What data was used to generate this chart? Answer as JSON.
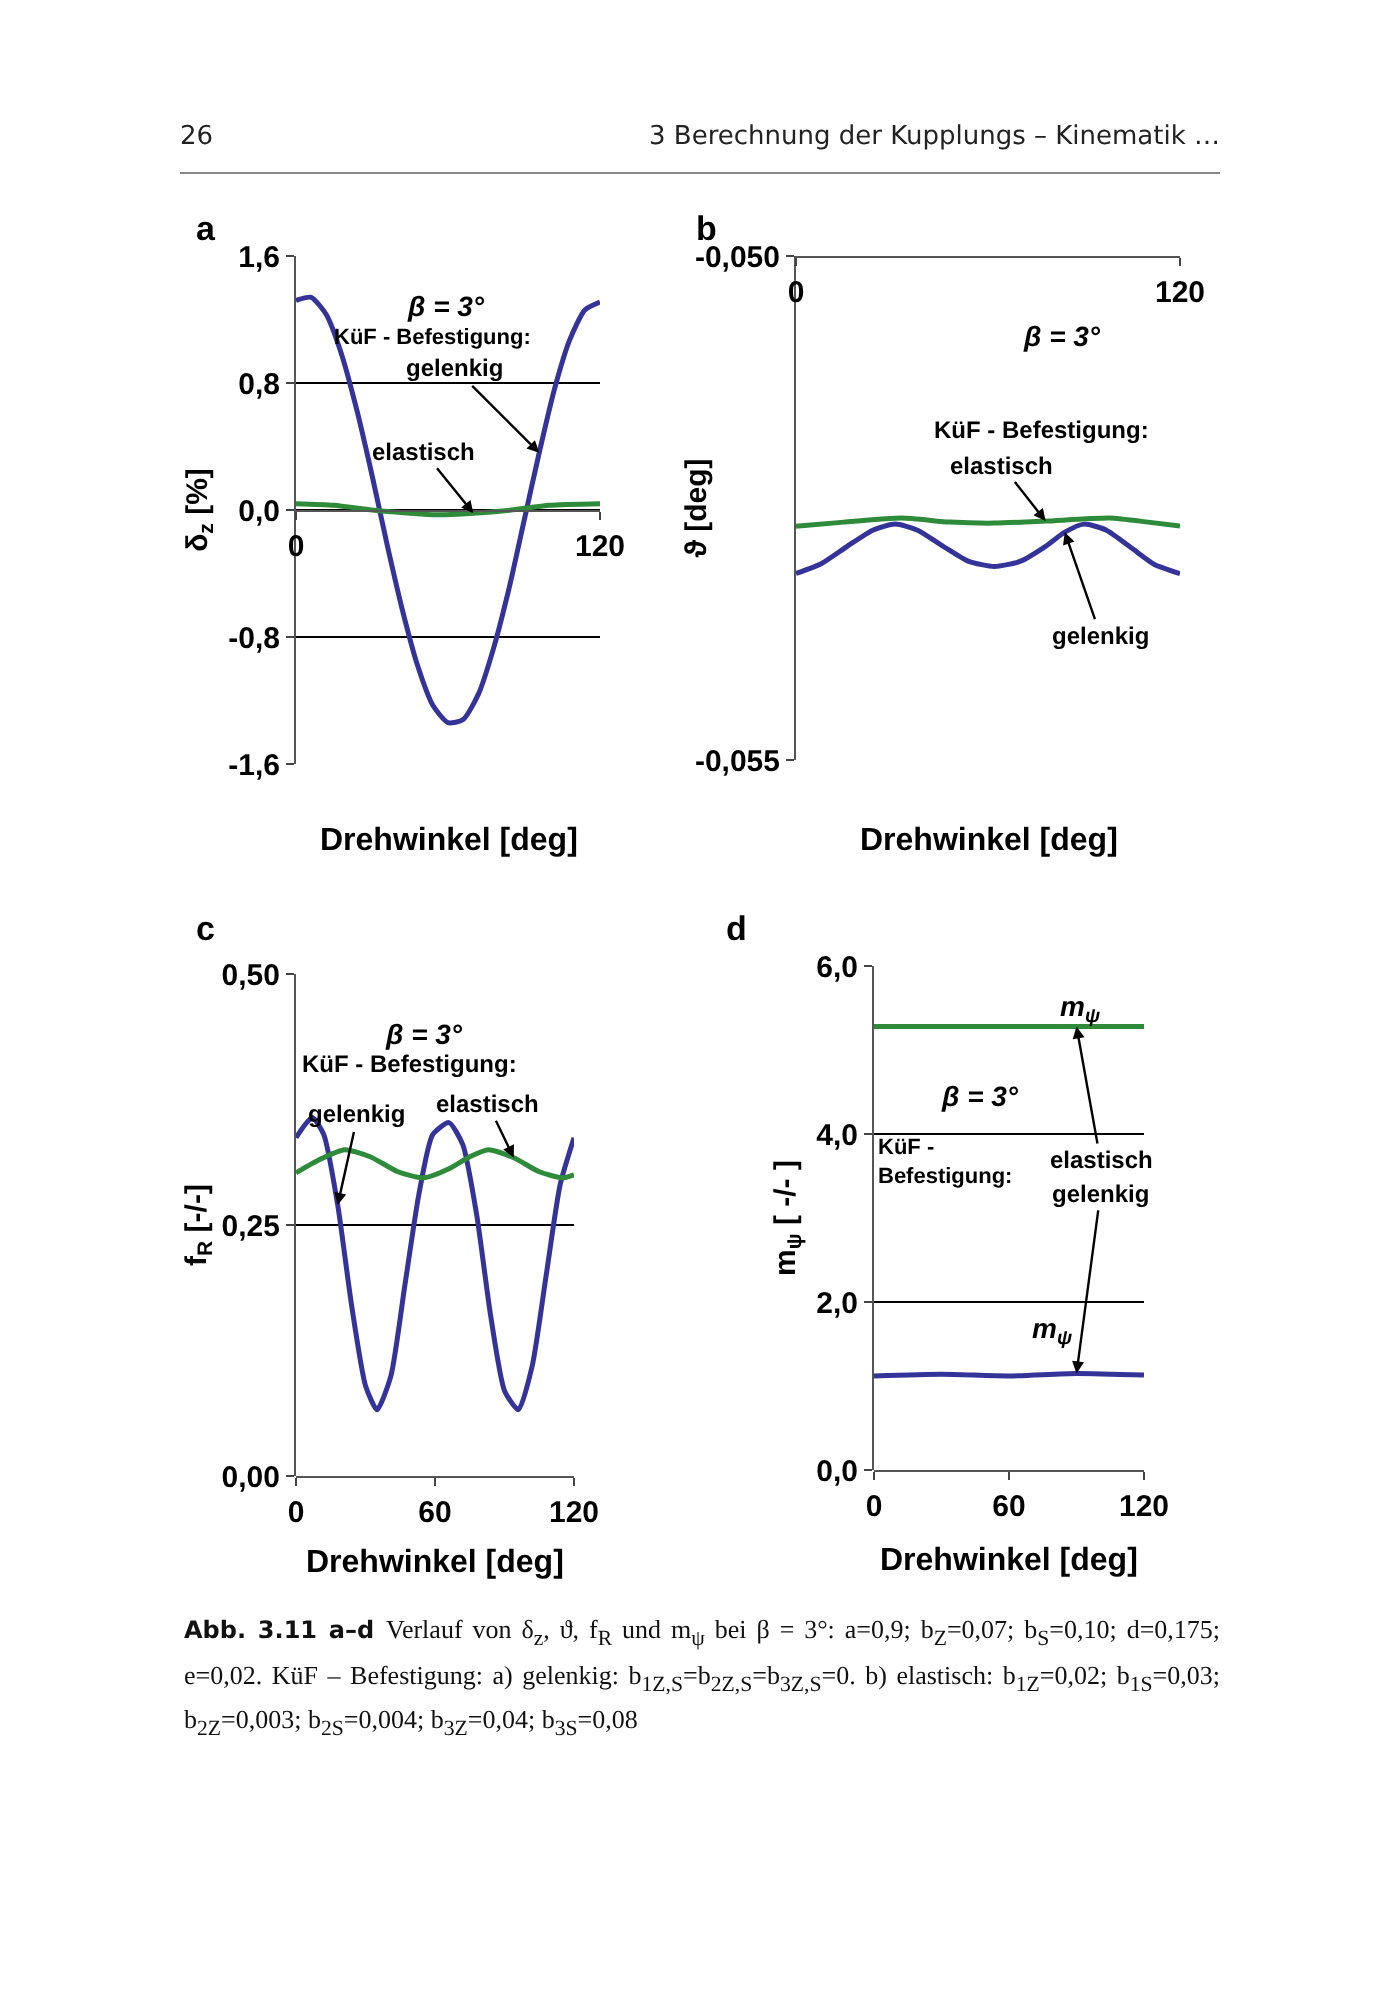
{
  "chart_data": [
    {
      "type": "line",
      "title": "a",
      "xlabel": "Drehwinkel [deg]",
      "ylabel": "δ$_{z}$ [%]",
      "xlim": [
        0,
        120
      ],
      "xticks": [
        0,
        120
      ],
      "ylim": [
        -1.6,
        1.6
      ],
      "yticks": [
        {
          "value": -1.6,
          "label": "-1,6"
        },
        {
          "value": -0.8,
          "label": "-0,8"
        },
        {
          "value": 0,
          "label": "0,0"
        },
        {
          "value": 0.8,
          "label": "0,8"
        },
        {
          "value": 1.6,
          "label": "1,6"
        }
      ],
      "grid": "y",
      "annotations": [
        "26",
        "3 Berechnung der Kupplungs – Kinematik …",
        "β = 3°",
        "KüF - Befestigung:"
      ],
      "series": [
        {
          "name": "gelenkig",
          "color": "#333399",
          "x": [
            0,
            6,
            12,
            18,
            24,
            30,
            36,
            42,
            48,
            54,
            60,
            66,
            72,
            78,
            84,
            90,
            96,
            102,
            108,
            114,
            120
          ],
          "values": [
            1.32,
            1.34,
            1.23,
            0.98,
            0.63,
            0.22,
            -0.22,
            -0.63,
            -0.98,
            -1.23,
            -1.34,
            -1.32,
            -1.16,
            -0.87,
            -0.5,
            -0.07,
            0.36,
            0.76,
            1.07,
            1.26,
            1.31
          ]
        },
        {
          "name": "elastisch",
          "color": "#2e8b3a",
          "x": [
            0,
            15,
            30,
            45,
            55,
            70,
            85,
            100,
            120
          ],
          "values": [
            0.04,
            0.03,
            0.0,
            -0.02,
            -0.03,
            -0.02,
            0.0,
            0.03,
            0.04
          ]
        }
      ]
    },
    {
      "type": "line",
      "title": "b",
      "xlabel": "Drehwinkel [deg]",
      "ylabel": "ϑ [deg]",
      "xlim": [
        0,
        120
      ],
      "xticks": [
        0,
        120
      ],
      "ylim": [
        -0.055,
        -0.05
      ],
      "yticks": [
        {
          "value": -0.055,
          "label": "-0,055"
        },
        {
          "value": -0.05,
          "label": "-0,050"
        }
      ],
      "annotations": [
        "β = 3°",
        "KüF - Befestigung:"
      ],
      "series": [
        {
          "name": "gelenkig",
          "color": "#333399",
          "x": [
            0,
            8,
            16,
            24,
            31,
            38,
            46,
            54,
            62,
            70,
            78,
            84,
            90,
            97,
            105,
            112,
            120
          ],
          "values": [
            -0.05315,
            -0.05305,
            -0.05288,
            -0.05272,
            -0.05266,
            -0.05272,
            -0.05288,
            -0.05303,
            -0.05308,
            -0.05303,
            -0.05288,
            -0.05274,
            -0.05266,
            -0.05272,
            -0.0529,
            -0.05306,
            -0.05315
          ]
        },
        {
          "name": "elastisch",
          "color": "#2e8b3a",
          "x": [
            0,
            15,
            33,
            48,
            62,
            78,
            98,
            110,
            120
          ],
          "values": [
            -0.05268,
            -0.05264,
            -0.0526,
            -0.05264,
            -0.05265,
            -0.05263,
            -0.0526,
            -0.05264,
            -0.05268
          ]
        }
      ]
    },
    {
      "type": "line",
      "title": "c",
      "xlabel": "Drehwinkel [deg]",
      "ylabel": "f$_{R}$ [-/-]",
      "xlim": [
        0,
        120
      ],
      "xticks": [
        0,
        60,
        120
      ],
      "ylim": [
        0,
        0.5
      ],
      "yticks": [
        {
          "value": 0,
          "label": "0,00"
        },
        {
          "value": 0.25,
          "label": "0,25"
        },
        {
          "value": 0.5,
          "label": "0,50"
        }
      ],
      "grid": "y",
      "annotations": [
        "β = 3°",
        "KüF - Befestigung:"
      ],
      "series": [
        {
          "name": "gelenkig",
          "color": "#333399",
          "x": [
            0,
            7,
            12,
            18,
            24,
            30,
            35,
            41,
            47,
            53,
            59,
            66,
            72,
            78,
            84,
            90,
            96,
            102,
            108,
            114,
            120
          ],
          "values": [
            0.337,
            0.357,
            0.34,
            0.27,
            0.17,
            0.09,
            0.066,
            0.1,
            0.19,
            0.28,
            0.34,
            0.352,
            0.33,
            0.26,
            0.16,
            0.085,
            0.066,
            0.11,
            0.2,
            0.29,
            0.337
          ]
        },
        {
          "name": "elastisch",
          "color": "#2e8b3a",
          "x": [
            0,
            10,
            21,
            32,
            44,
            55,
            66,
            75,
            83,
            94,
            105,
            115,
            120
          ],
          "values": [
            0.302,
            0.315,
            0.325,
            0.318,
            0.303,
            0.297,
            0.306,
            0.318,
            0.325,
            0.317,
            0.303,
            0.297,
            0.3
          ]
        }
      ]
    },
    {
      "type": "line",
      "title": "d",
      "xlabel": "Drehwinkel [deg]",
      "ylabel": "m$_{ψ}$ [ -/- ]",
      "xlim": [
        0,
        120
      ],
      "xticks": [
        0,
        60,
        120
      ],
      "ylim": [
        0,
        6
      ],
      "yticks": [
        {
          "value": 0,
          "label": "0,0"
        },
        {
          "value": 2,
          "label": "2,0"
        },
        {
          "value": 4,
          "label": "4,0"
        },
        {
          "value": 6,
          "label": "6,0"
        }
      ],
      "grid": "y",
      "annotations": [
        "m$_{ψ}$",
        "m$_{ψ}$",
        "β = 3°",
        "KüF -\nBefestigung:",
        "Abb. 3.11 a–d",
        "Verlauf von δ$_{z}$, ϑ, f$_{R}$ und m$_{ψ}$ bei β = 3°: a=0,9; b$_{Z}$=0,07; b$_{S}$=0,10; d=0,175; e=0,02. KüF – Befestigung: a) gelenkig: b$_{1Z,S}$=b$_{2Z,S}$=b$_{3Z,S}$=0. b) elastisch: b$_{1Z}$=0,02; b$_{1S}$=0,03; b$_{2Z}$=0,003; b$_{2S}$=0,004; b$_{3Z}$=0,04; b$_{3S}$=0,08"
      ],
      "series": [
        {
          "name": "gelenkig",
          "color": "#333399",
          "x": [
            0,
            30,
            60,
            90,
            120
          ],
          "values": [
            1.12,
            1.14,
            1.12,
            1.15,
            1.13
          ]
        },
        {
          "name": "elastisch",
          "color": "#2e8b3a",
          "x": [
            0,
            30,
            60,
            90,
            120
          ],
          "values": [
            5.28,
            5.28,
            5.28,
            5.28,
            5.28
          ]
        }
      ]
    }
  ]
}
